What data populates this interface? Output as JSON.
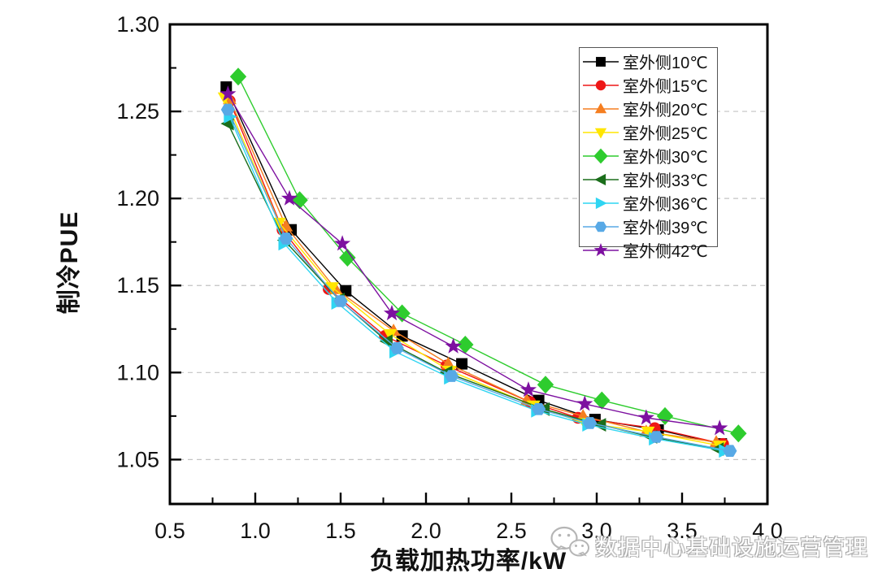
{
  "chart_data": {
    "type": "line",
    "title": "",
    "xlabel": "负载加热功率/kW",
    "ylabel": "制冷PUE",
    "xlim": [
      0.5,
      4.0
    ],
    "ylim": [
      1.0245,
      1.3
    ],
    "x_major_ticks": [
      0.5,
      1.0,
      1.5,
      2.0,
      2.5,
      3.0,
      3.5,
      4.0
    ],
    "x_tick_labels": [
      "0.5",
      "1.0",
      "1.5",
      "2.0",
      "2.5",
      "3.0",
      "3.5",
      "4.0"
    ],
    "x_minor_ticks": [
      0.75,
      1.25,
      1.75,
      2.25,
      2.75,
      3.25,
      3.75
    ],
    "y_major_ticks": [
      1.05,
      1.1,
      1.15,
      1.2,
      1.25,
      1.3
    ],
    "y_tick_labels": [
      "1.05",
      "1.10",
      "1.15",
      "1.20",
      "1.25",
      "1.30"
    ],
    "y_minor_ticks": [
      1.075,
      1.125,
      1.175,
      1.225,
      1.275
    ],
    "grid": "horizontal-dashed",
    "legend_position": "top-right-inside",
    "series": [
      {
        "name": "室外侧10℃",
        "marker": "square",
        "color": "#000000",
        "x": [
          0.83,
          1.21,
          1.53,
          1.86,
          2.21,
          2.66,
          2.99,
          3.36,
          3.73
        ],
        "y": [
          1.264,
          1.182,
          1.147,
          1.121,
          1.105,
          1.084,
          1.073,
          1.067,
          1.059
        ]
      },
      {
        "name": "室外侧15℃",
        "marker": "circle",
        "color": "#ee1616",
        "x": [
          0.85,
          1.16,
          1.43,
          1.76,
          2.12,
          2.61,
          2.89,
          3.34,
          3.74
        ],
        "y": [
          1.256,
          1.182,
          1.148,
          1.121,
          1.104,
          1.083,
          1.074,
          1.068,
          1.059
        ]
      },
      {
        "name": "室外侧20℃",
        "marker": "triangle-up",
        "color": "#f57e20",
        "x": [
          0.85,
          1.18,
          1.47,
          1.81,
          2.13,
          2.59,
          2.92,
          3.29,
          3.7
        ],
        "y": [
          1.257,
          1.184,
          1.148,
          1.124,
          1.105,
          1.084,
          1.075,
          1.066,
          1.06
        ]
      },
      {
        "name": "室外侧25℃",
        "marker": "triangle-down",
        "color": "#ffe600",
        "x": [
          0.82,
          1.14,
          1.45,
          1.79,
          2.14,
          2.63,
          2.93,
          3.3,
          3.72
        ],
        "y": [
          1.258,
          1.186,
          1.149,
          1.122,
          1.101,
          1.081,
          1.071,
          1.066,
          1.058
        ]
      },
      {
        "name": "室外侧30℃",
        "marker": "diamond",
        "color": "#2ecc2e",
        "x": [
          0.9,
          1.26,
          1.54,
          1.86,
          2.23,
          2.7,
          3.03,
          3.4,
          3.83
        ],
        "y": [
          1.27,
          1.199,
          1.166,
          1.134,
          1.116,
          1.093,
          1.084,
          1.075,
          1.065
        ]
      },
      {
        "name": "室外侧33℃",
        "marker": "triangle-left",
        "color": "#1b6e1b",
        "x": [
          0.84,
          1.17,
          1.49,
          1.77,
          2.12,
          2.69,
          3.02,
          3.32,
          3.71
        ],
        "y": [
          1.243,
          1.176,
          1.142,
          1.118,
          1.1,
          1.079,
          1.07,
          1.063,
          1.056
        ]
      },
      {
        "name": "室外侧36℃",
        "marker": "triangle-right",
        "color": "#2fd5f2",
        "x": [
          0.85,
          1.17,
          1.48,
          1.82,
          2.14,
          2.65,
          2.95,
          3.34,
          3.75
        ],
        "y": [
          1.247,
          1.174,
          1.14,
          1.112,
          1.097,
          1.078,
          1.07,
          1.062,
          1.055
        ]
      },
      {
        "name": "室外侧39℃",
        "marker": "hexagon",
        "color": "#58a9e6",
        "x": [
          0.84,
          1.18,
          1.5,
          1.83,
          2.15,
          2.66,
          2.96,
          3.35,
          3.78
        ],
        "y": [
          1.251,
          1.177,
          1.141,
          1.114,
          1.098,
          1.079,
          1.071,
          1.063,
          1.055
        ]
      },
      {
        "name": "室外侧42℃",
        "marker": "star",
        "color": "#7d10a0",
        "x": [
          0.84,
          1.2,
          1.51,
          1.8,
          2.16,
          2.6,
          2.93,
          3.29,
          3.72
        ],
        "y": [
          1.26,
          1.2,
          1.174,
          1.134,
          1.115,
          1.09,
          1.082,
          1.074,
          1.068
        ]
      }
    ]
  },
  "watermark": {
    "icon": "wechat-icon",
    "text": "数据中心基础设施运营管理"
  }
}
